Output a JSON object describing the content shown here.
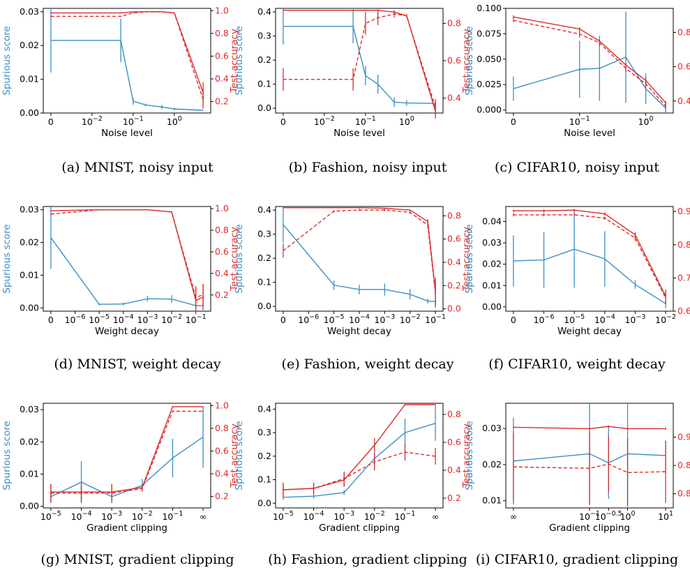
{
  "colors": {
    "spurious": "#3a8fc4",
    "accuracy": "#d92d2a",
    "axes": "#000000"
  },
  "legend_note": {
    "solid": "solid line",
    "dashed": "dashed line"
  },
  "chart_data": [
    {
      "id": "a",
      "type": "line",
      "caption": "(a) MNIST, noisy input",
      "xlabel": "Noise level",
      "ylabel_left": "Spurious score",
      "ylabel_right": "Test accuracy",
      "x_scale": "symlog",
      "x": [
        0,
        0.05,
        0.1,
        0.2,
        0.5,
        1,
        5
      ],
      "xticks": [
        0,
        0.01,
        0.1,
        1
      ],
      "xticklabels": [
        "0",
        "10^-2",
        "10^-1",
        "10^0"
      ],
      "ylim_left": [
        0,
        0.031
      ],
      "yticks_left": [
        0,
        0.01,
        0.02,
        0.03
      ],
      "yticklabels_left": [
        "0.00",
        "0.01",
        "0.02",
        "0.03"
      ],
      "ylim_right": [
        0.1,
        1.02
      ],
      "yticks_right": [
        0.2,
        0.4,
        0.6,
        0.8,
        1.0
      ],
      "yticklabels_right": [
        "0.2",
        "0.4",
        "0.6",
        "0.8",
        "1.0"
      ],
      "spurious": {
        "y": [
          0.0215,
          0.0215,
          0.0035,
          0.0024,
          0.0018,
          0.0012,
          0.0008
        ],
        "err": [
          0.0095,
          0.0065,
          0.001,
          0.0004,
          0.0006,
          0.0004,
          0.0001
        ]
      },
      "accuracy": {
        "y": [
          0.98,
          0.98,
          0.99,
          0.99,
          0.99,
          0.98,
          0.28
        ],
        "err": [
          0.004,
          0.004,
          0.002,
          0.002,
          0.002,
          0.003,
          0.09
        ]
      },
      "accuracy_dashed": {
        "y": [
          0.95,
          0.95,
          0.98,
          0.99,
          0.99,
          0.98,
          0.22
        ],
        "err": [
          0.005,
          0.005,
          0.003,
          0.003,
          0.003,
          0.003,
          0.08
        ]
      }
    },
    {
      "id": "b",
      "type": "line",
      "caption": "(b) Fashion, noisy input",
      "xlabel": "Noise level",
      "ylabel_left": "Spurious score",
      "ylabel_right": "Test accuracy",
      "x_scale": "symlog",
      "x": [
        0,
        0.05,
        0.1,
        0.2,
        0.5,
        1,
        5
      ],
      "xticks": [
        0,
        0.01,
        0.1,
        1
      ],
      "xticklabels": [
        "0",
        "10^-2",
        "10^-1",
        "10^0"
      ],
      "ylim_left": [
        -0.02,
        0.415
      ],
      "yticks_left": [
        0,
        0.1,
        0.2,
        0.3,
        0.4
      ],
      "yticklabels_left": [
        "0.0",
        "0.1",
        "0.2",
        "0.3",
        "0.4"
      ],
      "ylim_right": [
        0.32,
        0.88
      ],
      "yticks_right": [
        0.4,
        0.6,
        0.8
      ],
      "yticklabels_right": [
        "0.4",
        "0.6",
        "0.8"
      ],
      "spurious": {
        "y": [
          0.34,
          0.34,
          0.135,
          0.1,
          0.025,
          0.022,
          0.02
        ],
        "err": [
          0.075,
          0.07,
          0.04,
          0.04,
          0.02,
          0.012,
          0.018
        ]
      },
      "accuracy": {
        "y": [
          0.87,
          0.87,
          0.87,
          0.87,
          0.86,
          0.84,
          0.33
        ],
        "err": [
          0.004,
          0.004,
          0.004,
          0.004,
          0.005,
          0.005,
          0.04
        ]
      },
      "accuracy_dashed": {
        "y": [
          0.5,
          0.5,
          0.8,
          0.83,
          0.85,
          0.84,
          0.35
        ],
        "err": [
          0.06,
          0.06,
          0.06,
          0.04,
          0.02,
          0.01,
          0.04
        ]
      }
    },
    {
      "id": "c",
      "type": "line",
      "caption": "(c) CIFAR10, noisy input",
      "xlabel": "Noise level",
      "ylabel_left": "Spurious score",
      "ylabel_right": "Test accuracy",
      "x_scale": "symlog",
      "x": [
        0,
        0.1,
        0.2,
        0.5,
        1,
        2
      ],
      "xticks": [
        0,
        0.1,
        1
      ],
      "xticklabels": [
        "0",
        "10^-1",
        "10^0"
      ],
      "ylim_left": [
        -0.003,
        0.1
      ],
      "yticks_left": [
        0,
        0.025,
        0.05,
        0.075,
        0.1
      ],
      "yticklabels_left": [
        "0.000",
        "0.025",
        "0.050",
        "0.075",
        "0.100"
      ],
      "ylim_right": [
        0.33,
        0.94
      ],
      "yticks_right": [
        0.4,
        0.6,
        0.8
      ],
      "yticklabels_right": [
        "0.4",
        "0.6",
        "0.8"
      ],
      "spurious": {
        "y": [
          0.021,
          0.04,
          0.041,
          0.052,
          0.021,
          0.002
        ],
        "err": [
          0.012,
          0.028,
          0.032,
          0.045,
          0.015,
          0.005
        ]
      },
      "accuracy": {
        "y": [
          0.89,
          0.82,
          0.75,
          0.61,
          0.52,
          0.39
        ],
        "err": [
          0.01,
          0.01,
          0.01,
          0.01,
          0.02,
          0.01
        ]
      },
      "accuracy_dashed": {
        "y": [
          0.87,
          0.79,
          0.74,
          0.59,
          0.5,
          0.37
        ],
        "err": [
          0.01,
          0.02,
          0.02,
          0.02,
          0.02,
          0.02
        ]
      }
    },
    {
      "id": "d",
      "type": "line",
      "caption": "(d) MNIST, weight decay",
      "xlabel": "Weight decay",
      "ylabel_left": "Spurious score",
      "ylabel_right": "Test accuracy",
      "x_scale": "symlog",
      "x": [
        0,
        1e-05,
        0.0001,
        0.001,
        0.01,
        0.1,
        0.2
      ],
      "xticks": [
        0,
        1e-06,
        1e-05,
        0.0001,
        0.001,
        0.01,
        0.1
      ],
      "xticklabels": [
        "0",
        "10^-6",
        "10^-5",
        "10^-4",
        "10^-3",
        "10^-2",
        "10^-1"
      ],
      "ylim_left": [
        -0.001,
        0.031
      ],
      "yticks_left": [
        0,
        0.01,
        0.02,
        0.03
      ],
      "yticklabels_left": [
        "0.00",
        "0.01",
        "0.02",
        "0.03"
      ],
      "ylim_right": [
        0.05,
        1.02
      ],
      "yticks_right": [
        0.2,
        0.4,
        0.6,
        0.8,
        1.0
      ],
      "yticklabels_right": [
        "0.2",
        "0.4",
        "0.6",
        "0.8",
        "1.0"
      ],
      "spurious": {
        "y": [
          0.0215,
          0.0011,
          0.0012,
          0.0028,
          0.0027,
          0.0007,
          0.0007
        ],
        "err": [
          0.0095,
          0.0003,
          0.0004,
          0.0009,
          0.0012,
          0.0004,
          0.0003
        ]
      },
      "accuracy": {
        "y": [
          0.98,
          0.99,
          0.99,
          0.99,
          0.97,
          0.15,
          0.18
        ],
        "err": [
          0.004,
          0.002,
          0.002,
          0.002,
          0.005,
          0.12,
          0.12
        ]
      },
      "accuracy_dashed": {
        "y": [
          0.95,
          0.99,
          0.99,
          0.99,
          0.97,
          0.18,
          0.2
        ],
        "err": [
          0.005,
          0.002,
          0.002,
          0.002,
          0.005,
          0.1,
          0.1
        ]
      }
    },
    {
      "id": "e",
      "type": "line",
      "caption": "(e) Fashion, weight decay",
      "xlabel": "Weight decay",
      "ylabel_left": "Spurious score",
      "ylabel_right": "Test accuracy",
      "x_scale": "symlog",
      "x": [
        0,
        1e-05,
        0.0001,
        0.001,
        0.01,
        0.05,
        0.1
      ],
      "xticks": [
        0,
        1e-06,
        1e-05,
        0.0001,
        0.001,
        0.01,
        0.1
      ],
      "xticklabels": [
        "0",
        "10^-6",
        "10^-5",
        "10^-4",
        "10^-3",
        "10^-2",
        "10^-1"
      ],
      "ylim_left": [
        -0.02,
        0.415
      ],
      "yticks_left": [
        0,
        0.1,
        0.2,
        0.3,
        0.4
      ],
      "yticklabels_left": [
        "0.0",
        "0.1",
        "0.2",
        "0.3",
        "0.4"
      ],
      "ylim_right": [
        -0.02,
        0.88
      ],
      "yticks_right": [
        0,
        0.2,
        0.4,
        0.6,
        0.8
      ],
      "yticklabels_right": [
        "0.0",
        "0.2",
        "0.4",
        "0.6",
        "0.8"
      ],
      "spurious": {
        "y": [
          0.34,
          0.088,
          0.07,
          0.07,
          0.05,
          0.022,
          0.02
        ],
        "err": [
          0.075,
          0.02,
          0.02,
          0.025,
          0.022,
          0.01,
          0.01
        ]
      },
      "accuracy": {
        "y": [
          0.87,
          0.87,
          0.87,
          0.865,
          0.85,
          0.75,
          0.15
        ],
        "err": [
          0.004,
          0.004,
          0.004,
          0.004,
          0.005,
          0.02,
          0.12
        ]
      },
      "accuracy_dashed": {
        "y": [
          0.5,
          0.84,
          0.85,
          0.85,
          0.83,
          0.72,
          0.13
        ],
        "err": [
          0.06,
          0.01,
          0.01,
          0.01,
          0.01,
          0.03,
          0.12
        ]
      }
    },
    {
      "id": "f",
      "type": "line",
      "caption": "(f) CIFAR10, weight decay",
      "xlabel": "Weight decay",
      "ylabel_left": "Spurious score",
      "ylabel_right": "Test accuracy",
      "x_scale": "symlog",
      "x": [
        0,
        1e-06,
        1e-05,
        0.0001,
        0.001,
        0.01
      ],
      "xticks": [
        0,
        1e-06,
        1e-05,
        0.0001,
        0.001,
        0.01
      ],
      "xticklabels": [
        "0",
        "10^-6",
        "10^-5",
        "10^-4",
        "10^-3",
        "10^-2"
      ],
      "ylim_left": [
        -0.002,
        0.047
      ],
      "yticks_left": [
        0,
        0.01,
        0.02,
        0.03,
        0.04
      ],
      "yticklabels_left": [
        "0.00",
        "0.01",
        "0.02",
        "0.03",
        "0.04"
      ],
      "ylim_right": [
        0.6,
        0.915
      ],
      "yticks_right": [
        0.6,
        0.7,
        0.8,
        0.9
      ],
      "yticklabels_right": [
        "0.6",
        "0.7",
        "0.8",
        "0.9"
      ],
      "spurious": {
        "y": [
          0.0215,
          0.022,
          0.027,
          0.0225,
          0.0105,
          0.0015
        ],
        "err": [
          0.012,
          0.013,
          0.018,
          0.013,
          0.002,
          0.002
        ]
      },
      "accuracy": {
        "y": [
          0.902,
          0.902,
          0.904,
          0.893,
          0.83,
          0.645
        ],
        "err": [
          0.004,
          0.004,
          0.004,
          0.005,
          0.008,
          0.02
        ]
      },
      "accuracy_dashed": {
        "y": [
          0.89,
          0.89,
          0.89,
          0.88,
          0.82,
          0.64
        ],
        "err": [
          0.005,
          0.005,
          0.005,
          0.005,
          0.008,
          0.02
        ]
      }
    },
    {
      "id": "g",
      "type": "line",
      "caption": "(g) MNIST, gradient clipping",
      "xlabel": "Gradient clipping",
      "ylabel_left": "Spurious score",
      "ylabel_right": "Test accuracy",
      "x_scale": "log_with_infinity",
      "x": [
        1e-05,
        0.0001,
        0.001,
        0.01,
        0.1,
        "inf"
      ],
      "xticks": [
        1e-05,
        0.0001,
        0.001,
        0.01,
        0.1,
        "inf"
      ],
      "xticklabels": [
        "10^-5",
        "10^-4",
        "10^-3",
        "10^-2",
        "10^-1",
        "∞"
      ],
      "ylim_left": [
        -0.0005,
        0.032
      ],
      "yticks_left": [
        0,
        0.01,
        0.02,
        0.03
      ],
      "yticklabels_left": [
        "0.00",
        "0.01",
        "0.02",
        "0.03"
      ],
      "ylim_right": [
        0.1,
        1.02
      ],
      "yticks_right": [
        0.2,
        0.4,
        0.6,
        0.8,
        1.0
      ],
      "yticklabels_right": [
        "0.2",
        "0.4",
        "0.6",
        "0.8",
        "1.0"
      ],
      "spurious": {
        "y": [
          0.003,
          0.0075,
          0.003,
          0.0065,
          0.015,
          0.0215
        ],
        "err": [
          0.002,
          0.0065,
          0.002,
          0.002,
          0.006,
          0.0095
        ]
      },
      "accuracy": {
        "y": [
          0.24,
          0.24,
          0.24,
          0.28,
          0.99,
          0.99
        ],
        "err": [
          0.07,
          0.07,
          0.07,
          0.02,
          0.004,
          0.004
        ]
      },
      "accuracy_dashed": {
        "y": [
          0.23,
          0.23,
          0.23,
          0.27,
          0.95,
          0.95
        ],
        "err": [
          0.08,
          0.08,
          0.08,
          0.02,
          0.005,
          0.005
        ]
      }
    },
    {
      "id": "h",
      "type": "line",
      "caption": "(h) Fashion, gradient clipping",
      "xlabel": "Gradient clipping",
      "ylabel_left": "Spurious score",
      "ylabel_right": "Test accuracy",
      "x_scale": "log_with_infinity",
      "x": [
        1e-05,
        0.0001,
        0.001,
        0.01,
        0.1,
        "inf"
      ],
      "xticks": [
        1e-05,
        0.0001,
        0.001,
        0.01,
        0.1,
        "inf"
      ],
      "xticklabels": [
        "10^-5",
        "10^-4",
        "10^-3",
        "10^-2",
        "10^-1",
        "∞"
      ],
      "ylim_left": [
        -0.02,
        0.425
      ],
      "yticks_left": [
        0,
        0.1,
        0.2,
        0.3,
        0.4
      ],
      "yticklabels_left": [
        "0.0",
        "0.1",
        "0.2",
        "0.3",
        "0.4"
      ],
      "ylim_right": [
        0.13,
        0.88
      ],
      "yticks_right": [
        0.2,
        0.4,
        0.6,
        0.8
      ],
      "yticklabels_right": [
        "0.2",
        "0.4",
        "0.6",
        "0.8"
      ],
      "spurious": {
        "y": [
          0.025,
          0.03,
          0.045,
          0.19,
          0.3,
          0.34
        ],
        "err": [
          0.01,
          0.01,
          0.01,
          0.05,
          0.06,
          0.075
        ]
      },
      "accuracy": {
        "y": [
          0.26,
          0.27,
          0.33,
          0.58,
          0.87,
          0.87
        ],
        "err": [
          0.05,
          0.04,
          0.05,
          0.05,
          0.004,
          0.004
        ]
      },
      "accuracy_dashed": {
        "y": [
          0.26,
          0.27,
          0.34,
          0.46,
          0.53,
          0.5
        ],
        "err": [
          0.05,
          0.04,
          0.05,
          0.06,
          0.06,
          0.06
        ]
      }
    },
    {
      "id": "i",
      "type": "line",
      "caption": "(i) CIFAR10, gradient clipping",
      "xlabel": "Gradient clipping",
      "ylabel_left": "Spurious score",
      "ylabel_right": "Test accuracy",
      "x_scale": "log_with_infinity_left",
      "x": [
        "inf",
        0.1,
        0.316,
        1,
        10
      ],
      "xticks": [
        "inf",
        0.1,
        0.316,
        1,
        10
      ],
      "xticklabels": [
        "∞",
        "10^-1",
        "10^-0.5",
        "10^0",
        "10^1"
      ],
      "ylim_left": [
        0.008,
        0.037
      ],
      "yticks_left": [
        0.01,
        0.02,
        0.03
      ],
      "yticklabels_left": [
        "0.01",
        "0.02",
        "0.03"
      ],
      "ylim_right": [
        0.875,
        0.912
      ],
      "yticks_right": [
        0.88,
        0.89,
        0.9
      ],
      "yticklabels_right": [
        "0.88",
        "0.89",
        "0.90"
      ],
      "spurious": {
        "y": [
          0.021,
          0.023,
          0.0205,
          0.023,
          0.0225
        ],
        "err": [
          0.012,
          0.014,
          0.01,
          0.014,
          0.004
        ]
      },
      "accuracy": {
        "y": [
          0.9035,
          0.903,
          0.9038,
          0.903,
          0.903
        ],
        "err": [
          0.0004,
          0.0005,
          0.0004,
          0.0005,
          0.0004
        ]
      },
      "accuracy_dashed": {
        "y": [
          0.8895,
          0.889,
          0.8905,
          0.8875,
          0.8878
        ],
        "err": [
          0.012,
          0.013,
          0.01,
          0.012,
          0.011
        ]
      }
    }
  ]
}
